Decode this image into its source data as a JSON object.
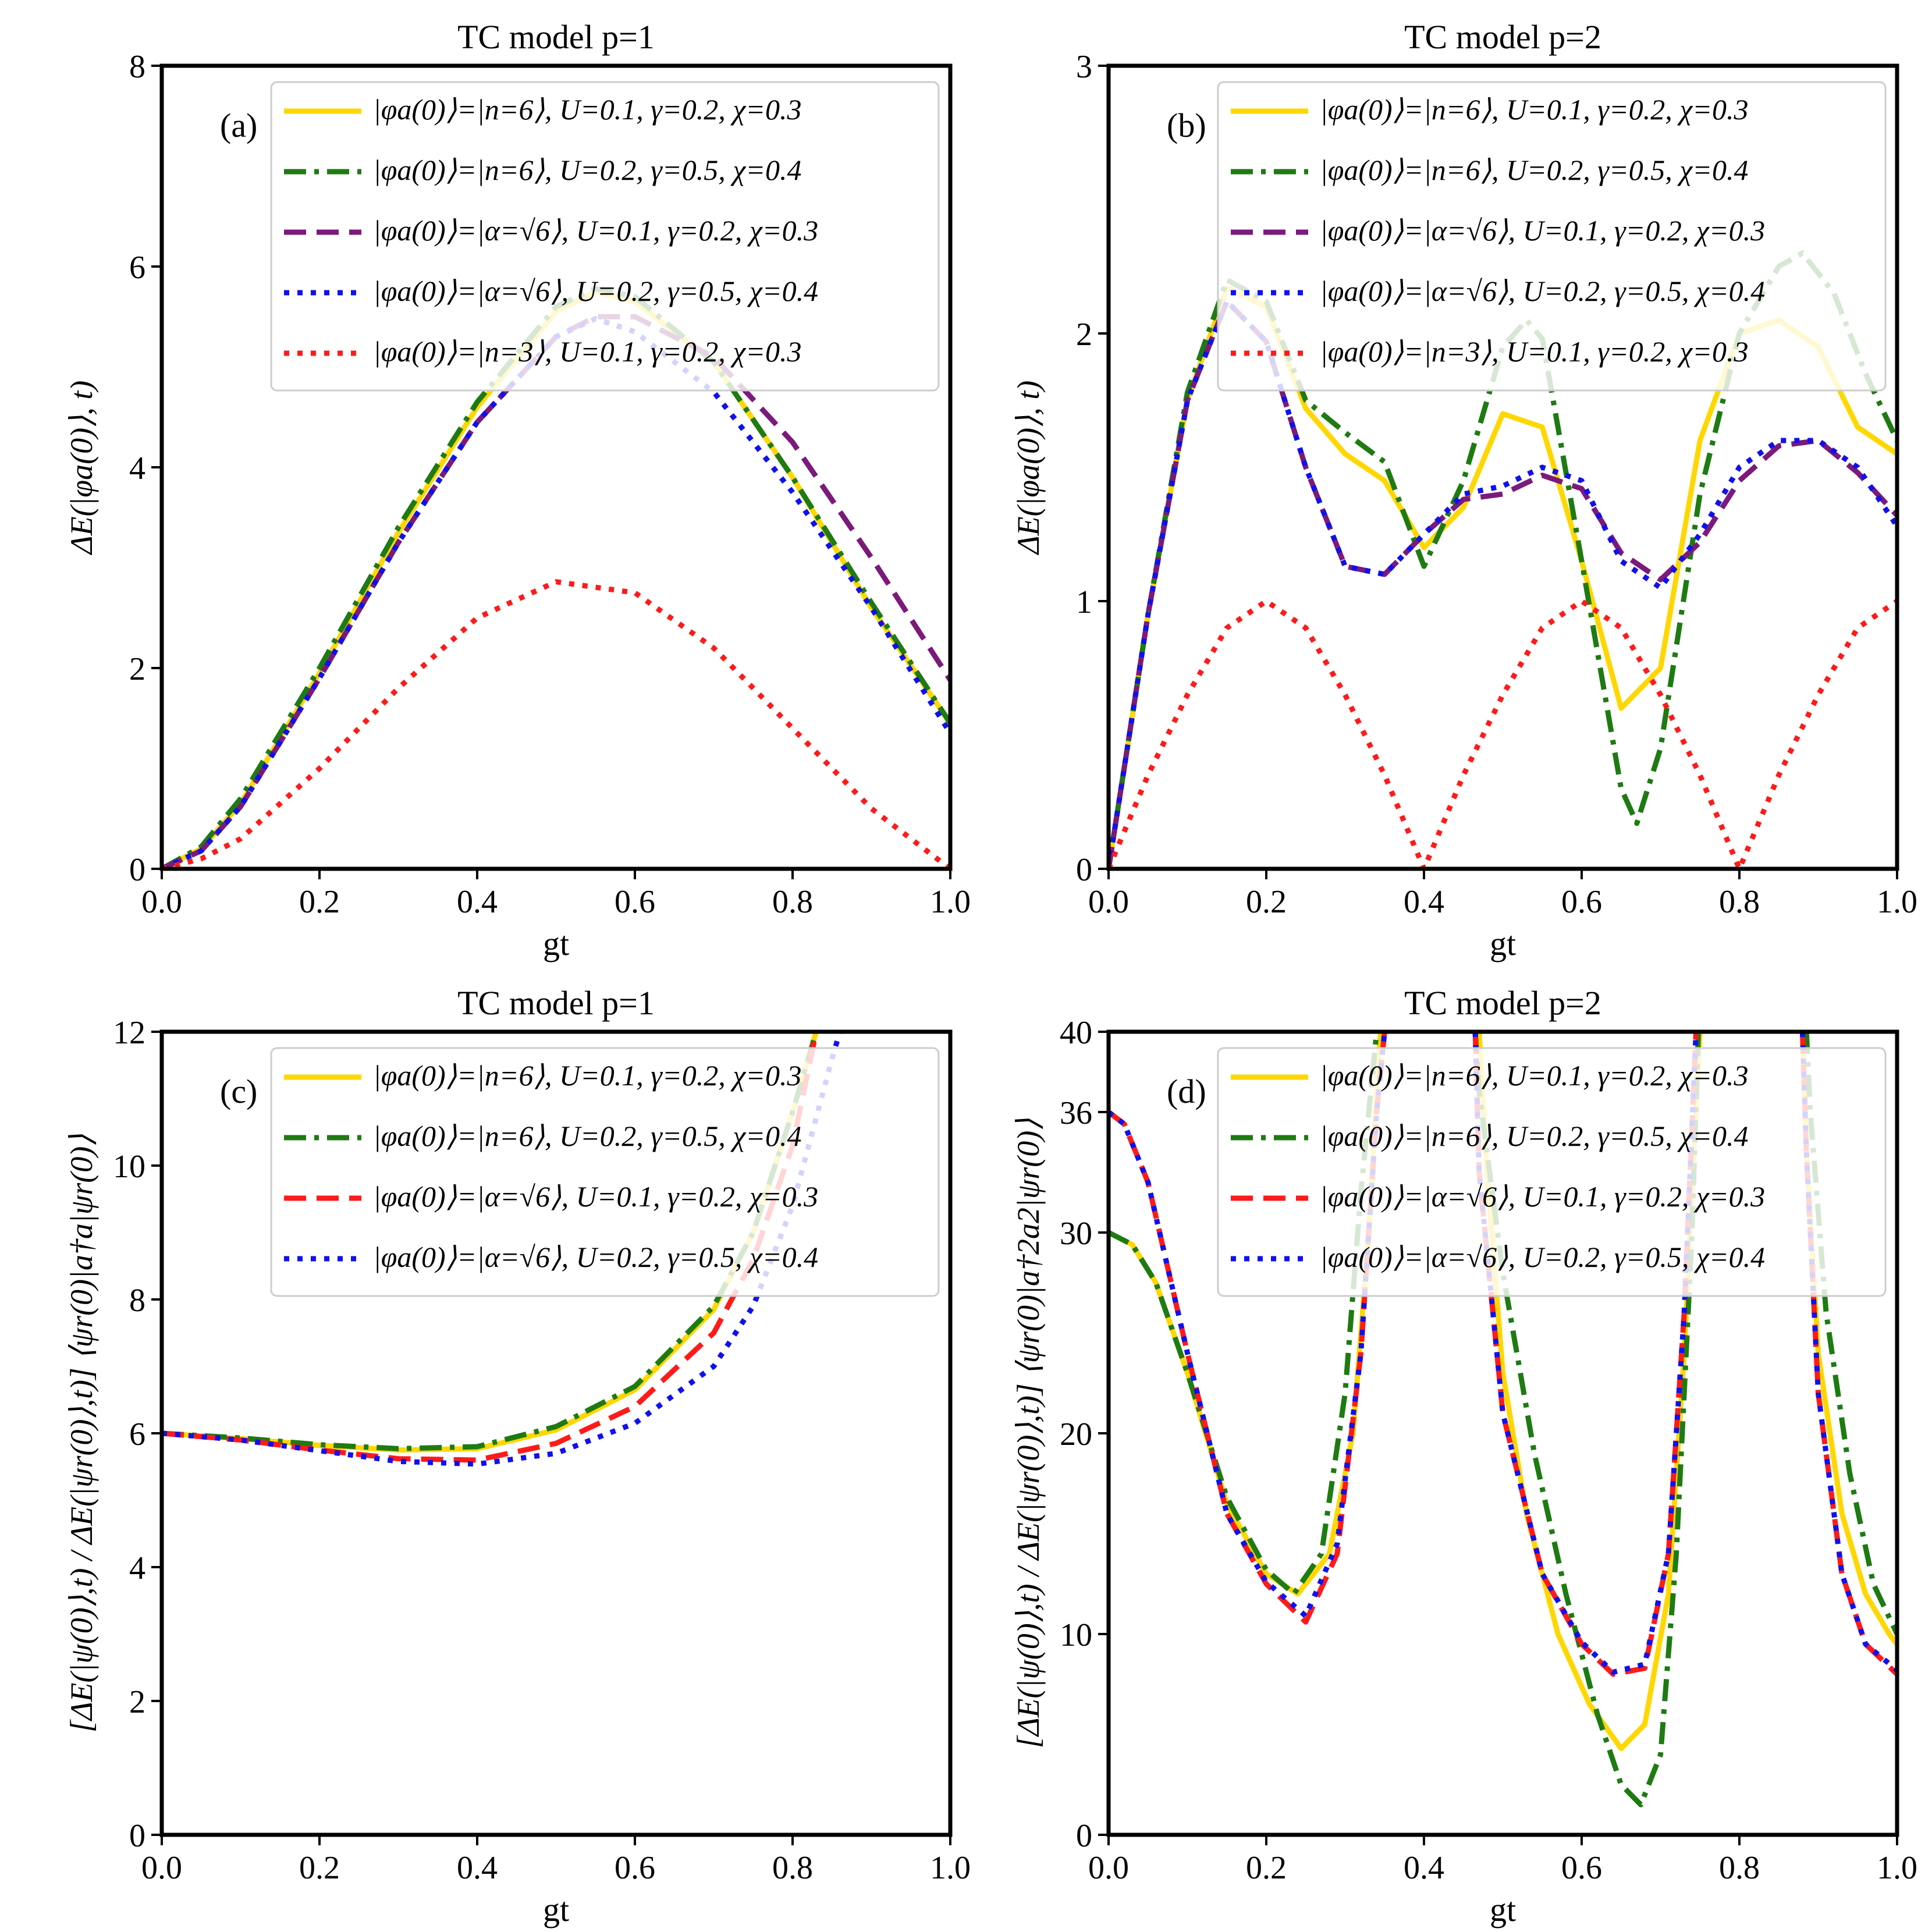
{
  "chart_data": [
    {
      "id": "a",
      "type": "line",
      "title": "TC model p=1",
      "panel_label": "(a)",
      "xlabel": "gt",
      "ylabel": "ΔE(|φa(0)⟩, t)",
      "xlim": [
        0,
        1
      ],
      "ylim": [
        0,
        8
      ],
      "xticks": [
        0.0,
        0.2,
        0.4,
        0.6,
        0.8,
        1.0
      ],
      "xtick_labels": [
        "0.0",
        "0.2",
        "0.4",
        "0.6",
        "0.8",
        "1.0"
      ],
      "yticks": [
        0,
        2,
        4,
        6,
        8
      ],
      "ytick_labels": [
        "0",
        "2",
        "4",
        "6",
        "8"
      ],
      "legend_loc": "upper-right",
      "series": [
        {
          "name": "|φa(0)⟩=|n=6⟩, U=0.1, γ=0.2, χ=0.3",
          "color": "#FFD700",
          "style": "solid",
          "x": [
            0,
            0.05,
            0.1,
            0.2,
            0.3,
            0.4,
            0.5,
            0.55,
            0.6,
            0.7,
            0.8,
            0.9,
            1.0
          ],
          "y": [
            0,
            0.2,
            0.65,
            1.95,
            3.35,
            4.6,
            5.55,
            5.75,
            5.65,
            5.05,
            3.9,
            2.6,
            1.45
          ]
        },
        {
          "name": "|φa(0)⟩=|n=6⟩, U=0.2, γ=0.5, χ=0.4",
          "color": "#1E7B12",
          "style": "dashdot",
          "x": [
            0,
            0.05,
            0.1,
            0.2,
            0.3,
            0.4,
            0.5,
            0.55,
            0.6,
            0.7,
            0.8,
            0.9,
            1.0
          ],
          "y": [
            0,
            0.22,
            0.7,
            2.0,
            3.4,
            4.65,
            5.6,
            5.78,
            5.7,
            5.05,
            3.9,
            2.65,
            1.45
          ]
        },
        {
          "name": "|φa(0)⟩=|α=√6⟩, U=0.1, γ=0.2, χ=0.3",
          "color": "#7B1A7B",
          "style": "dashed",
          "x": [
            0,
            0.05,
            0.1,
            0.2,
            0.3,
            0.4,
            0.5,
            0.55,
            0.6,
            0.7,
            0.8,
            0.9,
            1.0
          ],
          "y": [
            0,
            0.18,
            0.62,
            1.9,
            3.25,
            4.45,
            5.3,
            5.5,
            5.5,
            5.1,
            4.25,
            3.1,
            1.88
          ]
        },
        {
          "name": "|φa(0)⟩=|α=√6⟩, U=0.2, γ=0.5, χ=0.4",
          "color": "#1010EE",
          "style": "dotted",
          "x": [
            0,
            0.05,
            0.1,
            0.2,
            0.3,
            0.4,
            0.5,
            0.55,
            0.6,
            0.7,
            0.8,
            0.9,
            1.0
          ],
          "y": [
            0,
            0.18,
            0.62,
            1.9,
            3.25,
            4.45,
            5.3,
            5.48,
            5.35,
            4.75,
            3.75,
            2.6,
            1.35
          ]
        },
        {
          "name": "|φa(0)⟩=|n=3⟩, U=0.1, γ=0.2, χ=0.3",
          "color": "#FF1A1A",
          "style": "dotted",
          "x": [
            0,
            0.05,
            0.1,
            0.2,
            0.3,
            0.4,
            0.5,
            0.6,
            0.7,
            0.8,
            0.9,
            1.0
          ],
          "y": [
            0,
            0.1,
            0.3,
            1.0,
            1.8,
            2.5,
            2.86,
            2.75,
            2.2,
            1.4,
            0.6,
            0.0
          ]
        }
      ]
    },
    {
      "id": "b",
      "type": "line",
      "title": "TC model p=2",
      "panel_label": "(b)",
      "xlabel": "gt",
      "ylabel": "ΔE(|φa(0)⟩, t)",
      "xlim": [
        0,
        1
      ],
      "ylim": [
        0,
        3
      ],
      "xticks": [
        0.0,
        0.2,
        0.4,
        0.6,
        0.8,
        1.0
      ],
      "xtick_labels": [
        "0.0",
        "0.2",
        "0.4",
        "0.6",
        "0.8",
        "1.0"
      ],
      "yticks": [
        0,
        1,
        2,
        3
      ],
      "ytick_labels": [
        "0",
        "1",
        "2",
        "3"
      ],
      "legend_loc": "upper-right",
      "series": [
        {
          "name": "|φa(0)⟩=|n=6⟩, U=0.1, γ=0.2, χ=0.3",
          "color": "#FFD700",
          "style": "solid",
          "x": [
            0,
            0.05,
            0.1,
            0.15,
            0.2,
            0.25,
            0.3,
            0.35,
            0.4,
            0.45,
            0.5,
            0.55,
            0.6,
            0.65,
            0.7,
            0.75,
            0.8,
            0.85,
            0.9,
            0.95,
            1.0
          ],
          "y": [
            0,
            0.95,
            1.75,
            2.17,
            2.1,
            1.72,
            1.55,
            1.45,
            1.2,
            1.35,
            1.7,
            1.65,
            1.15,
            0.6,
            0.75,
            1.6,
            2.0,
            2.05,
            1.95,
            1.65,
            1.55
          ]
        },
        {
          "name": "|φa(0)⟩=|n=6⟩, U=0.2, γ=0.5, χ=0.4",
          "color": "#1E7B12",
          "style": "dashdot",
          "x": [
            0,
            0.05,
            0.1,
            0.15,
            0.2,
            0.25,
            0.3,
            0.35,
            0.4,
            0.45,
            0.5,
            0.53,
            0.55,
            0.6,
            0.65,
            0.67,
            0.7,
            0.75,
            0.8,
            0.85,
            0.88,
            0.92,
            0.96,
            1.0
          ],
          "y": [
            0,
            0.95,
            1.78,
            2.2,
            2.12,
            1.75,
            1.63,
            1.52,
            1.13,
            1.45,
            1.95,
            2.05,
            1.98,
            1.15,
            0.3,
            0.17,
            0.45,
            1.4,
            2.0,
            2.25,
            2.3,
            2.15,
            1.85,
            1.6
          ]
        },
        {
          "name": "|φa(0)⟩=|α=√6⟩, U=0.1, γ=0.2, χ=0.3",
          "color": "#7B1A7B",
          "style": "dashed",
          "x": [
            0,
            0.05,
            0.1,
            0.15,
            0.2,
            0.25,
            0.3,
            0.35,
            0.4,
            0.45,
            0.5,
            0.55,
            0.6,
            0.65,
            0.7,
            0.75,
            0.8,
            0.85,
            0.9,
            0.95,
            1.0
          ],
          "y": [
            0,
            0.95,
            1.75,
            2.12,
            1.97,
            1.5,
            1.13,
            1.1,
            1.25,
            1.38,
            1.4,
            1.47,
            1.42,
            1.18,
            1.08,
            1.22,
            1.45,
            1.58,
            1.6,
            1.48,
            1.32
          ]
        },
        {
          "name": "|φa(0)⟩=|α=√6⟩, U=0.2, γ=0.5, χ=0.4",
          "color": "#1010EE",
          "style": "dotted",
          "x": [
            0,
            0.05,
            0.1,
            0.15,
            0.2,
            0.25,
            0.3,
            0.35,
            0.4,
            0.45,
            0.5,
            0.55,
            0.6,
            0.65,
            0.7,
            0.75,
            0.8,
            0.85,
            0.9,
            0.95,
            1.0
          ],
          "y": [
            0,
            0.95,
            1.75,
            2.12,
            1.97,
            1.5,
            1.13,
            1.1,
            1.25,
            1.4,
            1.43,
            1.5,
            1.45,
            1.15,
            1.05,
            1.25,
            1.5,
            1.6,
            1.6,
            1.5,
            1.28
          ]
        },
        {
          "name": "|φa(0)⟩=|n=3⟩, U=0.1, γ=0.2, χ=0.3",
          "color": "#FF1A1A",
          "style": "dotted",
          "x": [
            0,
            0.05,
            0.1,
            0.15,
            0.2,
            0.25,
            0.3,
            0.35,
            0.4,
            0.45,
            0.5,
            0.55,
            0.6,
            0.65,
            0.7,
            0.75,
            0.8,
            0.85,
            0.9,
            0.95,
            1.0
          ],
          "y": [
            0,
            0.35,
            0.65,
            0.9,
            1.0,
            0.9,
            0.65,
            0.35,
            0.0,
            0.35,
            0.65,
            0.9,
            1.0,
            0.9,
            0.65,
            0.35,
            0.0,
            0.35,
            0.65,
            0.9,
            1.0
          ]
        }
      ]
    },
    {
      "id": "c",
      "type": "line",
      "title": "TC model p=1",
      "panel_label": "(c)",
      "xlabel": "gt",
      "ylabel": "[ΔE(|ψ(0)⟩,t) / ΔE(|ψr(0)⟩,t)] ⟨ψr(0)|a†a|ψr(0)⟩",
      "xlim": [
        0,
        1
      ],
      "ylim": [
        0,
        12
      ],
      "xticks": [
        0.0,
        0.2,
        0.4,
        0.6,
        0.8,
        1.0
      ],
      "xtick_labels": [
        "0.0",
        "0.2",
        "0.4",
        "0.6",
        "0.8",
        "1.0"
      ],
      "yticks": [
        0,
        2,
        4,
        6,
        8,
        10,
        12
      ],
      "ytick_labels": [
        "0",
        "2",
        "4",
        "6",
        "8",
        "10",
        "12"
      ],
      "legend_loc": "upper-right",
      "series": [
        {
          "name": "|φa(0)⟩=|n=6⟩, U=0.1, γ=0.2, χ=0.3",
          "color": "#FFD700",
          "style": "solid",
          "x": [
            0,
            0.1,
            0.2,
            0.3,
            0.4,
            0.5,
            0.6,
            0.7,
            0.75,
            0.8,
            0.83
          ],
          "y": [
            6.0,
            5.92,
            5.82,
            5.75,
            5.77,
            6.05,
            6.65,
            7.85,
            9.0,
            10.8,
            12.0
          ]
        },
        {
          "name": "|φa(0)⟩=|n=6⟩, U=0.2, γ=0.5, χ=0.4",
          "color": "#1E7B12",
          "style": "dashdot",
          "x": [
            0,
            0.1,
            0.2,
            0.3,
            0.4,
            0.5,
            0.6,
            0.7,
            0.75,
            0.8,
            0.83
          ],
          "y": [
            6.0,
            5.93,
            5.83,
            5.77,
            5.8,
            6.1,
            6.7,
            7.9,
            9.0,
            10.8,
            12.0
          ]
        },
        {
          "name": "|φa(0)⟩=|α=√6⟩, U=0.1, γ=0.2, χ=0.3",
          "color": "#FF1A1A",
          "style": "dashed",
          "x": [
            0,
            0.1,
            0.2,
            0.3,
            0.4,
            0.5,
            0.6,
            0.7,
            0.75,
            0.8,
            0.83
          ],
          "y": [
            6.0,
            5.9,
            5.75,
            5.62,
            5.6,
            5.85,
            6.4,
            7.5,
            8.6,
            10.3,
            12.0
          ]
        },
        {
          "name": "|φa(0)⟩=|α=√6⟩, U=0.2, γ=0.5, χ=0.4",
          "color": "#1010EE",
          "style": "dotted",
          "x": [
            0,
            0.1,
            0.2,
            0.3,
            0.4,
            0.5,
            0.6,
            0.7,
            0.75,
            0.8,
            0.85,
            0.86
          ],
          "y": [
            6.0,
            5.9,
            5.74,
            5.58,
            5.54,
            5.7,
            6.15,
            7.0,
            7.9,
            9.4,
            11.6,
            12.0
          ]
        }
      ]
    },
    {
      "id": "d",
      "type": "line",
      "title": "TC model p=2",
      "panel_label": "(d)",
      "xlabel": "gt",
      "ylabel": "[ΔE(|ψ(0)⟩,t) / ΔE(|ψr(0)⟩,t)] ⟨ψr(0)|a†2a2|ψr(0)⟩",
      "xlim": [
        0,
        1
      ],
      "ylim": [
        0,
        40
      ],
      "xticks": [
        0.0,
        0.2,
        0.4,
        0.6,
        0.8,
        1.0
      ],
      "xtick_labels": [
        "0.0",
        "0.2",
        "0.4",
        "0.6",
        "0.8",
        "1.0"
      ],
      "yticks": [
        0,
        10,
        20,
        30,
        36,
        40
      ],
      "ytick_labels": [
        "0",
        "10",
        "20",
        "30",
        "36",
        "40"
      ],
      "legend_loc": "upper-right",
      "series": [
        {
          "name": "|φa(0)⟩=|n=6⟩, U=0.1, γ=0.2, χ=0.3",
          "color": "#FFD700",
          "style": "solid",
          "x": [
            0,
            0.03,
            0.06,
            0.1,
            0.15,
            0.2,
            0.24,
            0.28,
            0.31,
            0.33,
            0.34,
            0.345,
            null,
            0.47,
            0.48,
            0.5,
            0.53,
            0.57,
            0.61,
            0.65,
            0.68,
            0.71,
            0.73,
            0.745,
            0.75,
            null,
            0.88,
            0.885,
            0.9,
            0.93,
            0.96,
            0.99,
            1.0
          ],
          "y": [
            30,
            29.4,
            27.5,
            23,
            16.5,
            13,
            12,
            14,
            20,
            30,
            37,
            40,
            null,
            40,
            33,
            23,
            16,
            10,
            6.5,
            4.3,
            5.5,
            12,
            24,
            36,
            40,
            null,
            40,
            34,
            24,
            16,
            12,
            10,
            9.5
          ]
        },
        {
          "name": "|φa(0)⟩=|n=6⟩, U=0.2, γ=0.5, χ=0.4",
          "color": "#1E7B12",
          "style": "dashdot",
          "x": [
            0,
            0.03,
            0.06,
            0.1,
            0.15,
            0.2,
            0.235,
            0.27,
            0.3,
            0.32,
            0.335,
            0.34,
            null,
            0.465,
            0.47,
            0.5,
            0.54,
            0.58,
            0.62,
            0.65,
            0.675,
            0.7,
            0.72,
            0.74,
            0.748,
            null,
            0.885,
            0.89,
            0.91,
            0.94,
            0.97,
            1.0
          ],
          "y": [
            30,
            29.4,
            27.5,
            23,
            16.8,
            13.2,
            12,
            14,
            22,
            32,
            38,
            40,
            null,
            40,
            37,
            28,
            19,
            12,
            6,
            2.5,
            1.5,
            4,
            14,
            30,
            40,
            null,
            40,
            36,
            26,
            18,
            12.5,
            10
          ]
        },
        {
          "name": "|φa(0)⟩=|α=√6⟩, U=0.1, γ=0.2, χ=0.3",
          "color": "#FF1A1A",
          "style": "dashed",
          "x": [
            0,
            0.02,
            0.05,
            0.1,
            0.15,
            0.2,
            0.25,
            0.29,
            0.32,
            0.34,
            0.35,
            null,
            0.465,
            0.47,
            0.5,
            0.55,
            0.6,
            0.64,
            0.68,
            0.71,
            0.73,
            0.745,
            null,
            0.88,
            0.885,
            0.9,
            0.93,
            0.96,
            1.0
          ],
          "y": [
            36,
            35.4,
            32.5,
            24,
            16,
            12.5,
            10.6,
            14,
            24,
            36,
            40,
            null,
            40,
            33,
            21,
            13,
            9.5,
            8,
            8.3,
            14,
            26,
            40,
            null,
            40,
            34,
            22,
            13,
            9.5,
            8
          ]
        },
        {
          "name": "|φa(0)⟩=|α=√6⟩, U=0.2, γ=0.5, χ=0.4",
          "color": "#1010EE",
          "style": "dotted",
          "x": [
            0,
            0.02,
            0.05,
            0.1,
            0.15,
            0.2,
            0.25,
            0.29,
            0.32,
            0.34,
            0.35,
            null,
            0.465,
            0.47,
            0.5,
            0.55,
            0.6,
            0.64,
            0.68,
            0.71,
            0.73,
            0.745,
            null,
            0.88,
            0.885,
            0.9,
            0.93,
            0.96,
            1.0
          ],
          "y": [
            36,
            35.4,
            32.5,
            24,
            16,
            12.6,
            10.9,
            14.5,
            24,
            36,
            40,
            null,
            40,
            33,
            21,
            13,
            9.6,
            8.1,
            8.5,
            14,
            26,
            40,
            null,
            40,
            34,
            22,
            13,
            9.5,
            8.2
          ]
        }
      ]
    }
  ]
}
